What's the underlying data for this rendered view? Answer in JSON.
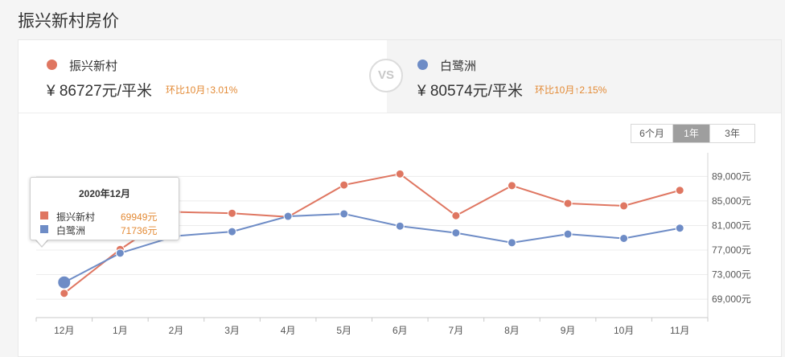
{
  "page": {
    "title": "振兴新村房价"
  },
  "compare": {
    "left": {
      "name": "振兴新村",
      "price": "¥ 86727元/平米",
      "change": "环比10月↑3.01%",
      "color": "#df7661"
    },
    "vs": "VS",
    "right": {
      "name": "白鹭洲",
      "price": "¥ 80574元/平米",
      "change": "环比10月↑2.15%",
      "color": "#6e8cc6"
    }
  },
  "range": {
    "options": [
      "6个月",
      "1年",
      "3年"
    ],
    "active": "1年"
  },
  "tooltip": {
    "date": "2020年12月",
    "rows": [
      {
        "name": "振兴新村",
        "value": "69949元",
        "color": "#df7661"
      },
      {
        "name": "白鹭洲",
        "value": "71736元",
        "color": "#6e8cc6"
      }
    ]
  },
  "chart_data": {
    "type": "line",
    "categories": [
      "12月",
      "1月",
      "2月",
      "3月",
      "4月",
      "5月",
      "6月",
      "7月",
      "8月",
      "9月",
      "10月",
      "11月"
    ],
    "series": [
      {
        "name": "振兴新村",
        "color": "#df7661",
        "values": [
          69949,
          77100,
          83200,
          83000,
          82400,
          87600,
          89400,
          82600,
          87500,
          84600,
          84200,
          86727
        ]
      },
      {
        "name": "白鹭洲",
        "color": "#6e8cc6",
        "values": [
          71736,
          76500,
          79300,
          80000,
          82500,
          82900,
          80900,
          79800,
          78200,
          79600,
          78900,
          80574
        ]
      }
    ],
    "yticks": [
      69000,
      73000,
      77000,
      81000,
      85000,
      89000
    ],
    "ytick_labels": [
      "69,000元",
      "73,000元",
      "77,000元",
      "81,000元",
      "85,000元",
      "89,000元"
    ],
    "ylim": [
      66000,
      91800
    ],
    "grid": true,
    "highlight_index": 0
  }
}
